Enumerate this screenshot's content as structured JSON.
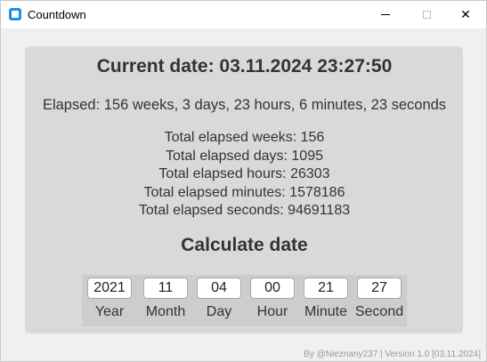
{
  "window": {
    "title": "Countdown",
    "minimize_label": "",
    "maximize_label": "",
    "close_label": "✕"
  },
  "current_date": "Current date: 03.11.2024 23:27:50",
  "elapsed": "Elapsed: 156 weeks, 3 days, 23 hours, 6 minutes, 23 seconds",
  "totals": {
    "weeks": "Total elapsed weeks: 156",
    "days": "Total elapsed days: 1095",
    "hours": "Total elapsed hours: 26303",
    "minutes": "Total elapsed minutes: 1578186",
    "seconds": "Total elapsed seconds: 94691183"
  },
  "calculate": {
    "title": "Calculate date",
    "fields": [
      {
        "label": "Year",
        "value": "2021"
      },
      {
        "label": "Month",
        "value": "11"
      },
      {
        "label": "Day",
        "value": "04"
      },
      {
        "label": "Hour",
        "value": "00"
      },
      {
        "label": "Minute",
        "value": "21"
      },
      {
        "label": "Second",
        "value": "27"
      }
    ]
  },
  "footer": "By @Nieznany237 | Version 1.0 [03.11.2024]",
  "colors": {
    "panel": "#d9d9d9",
    "text": "#333333",
    "accent": "#1e90e8"
  }
}
